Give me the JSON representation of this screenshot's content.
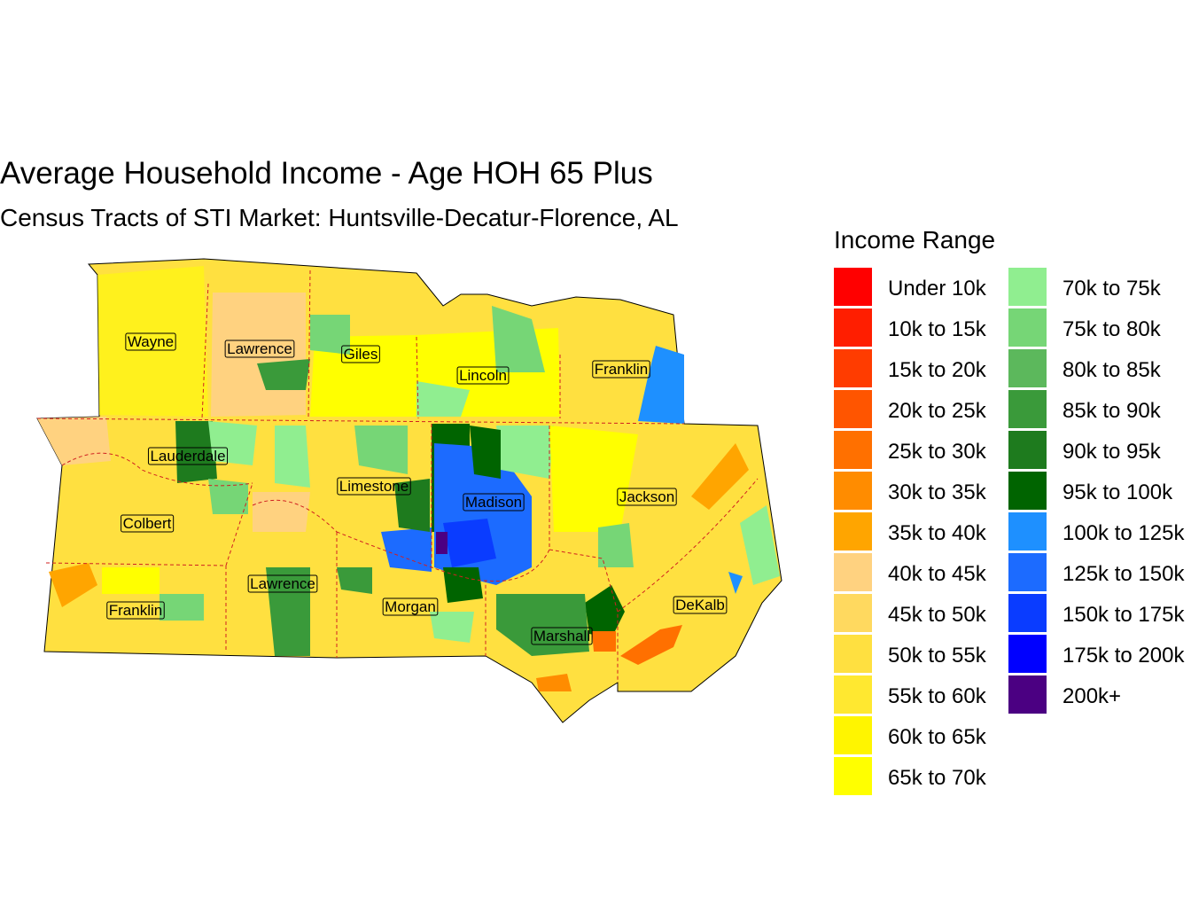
{
  "title": "Average Household Income - Age HOH 65 Plus",
  "subtitle": "Census Tracts of STI Market: Huntsville-Decatur-Florence, AL",
  "legend": {
    "title": "Income Range",
    "items": [
      {
        "label": "Under 10k",
        "color": "#FF0000"
      },
      {
        "label": "10k to 15k",
        "color": "#FF1E00"
      },
      {
        "label": "15k to 20k",
        "color": "#FF3C00"
      },
      {
        "label": "20k to 25k",
        "color": "#FF5500"
      },
      {
        "label": "25k to 30k",
        "color": "#FF7000"
      },
      {
        "label": "30k to 35k",
        "color": "#FF8C00"
      },
      {
        "label": "35k to 40k",
        "color": "#FFA500"
      },
      {
        "label": "40k to 45k",
        "color": "#FFD280"
      },
      {
        "label": "45k to 50k",
        "color": "#FFD95F"
      },
      {
        "label": "50k to 55k",
        "color": "#FFE040"
      },
      {
        "label": "55k to 60k",
        "color": "#FFE830"
      },
      {
        "label": "60k to 65k",
        "color": "#FFF500"
      },
      {
        "label": "65k to 70k",
        "color": "#FFFF00"
      },
      {
        "label": "70k to 75k",
        "color": "#90EE90"
      },
      {
        "label": "75k to 80k",
        "color": "#76D676"
      },
      {
        "label": "80k to 85k",
        "color": "#5CB85C"
      },
      {
        "label": "85k to 90k",
        "color": "#3A9A3A"
      },
      {
        "label": "90k to 95k",
        "color": "#1E7B1E"
      },
      {
        "label": "95k to 100k",
        "color": "#006400"
      },
      {
        "label": "100k to 125k",
        "color": "#1E90FF"
      },
      {
        "label": "125k to 150k",
        "color": "#1C6BFF"
      },
      {
        "label": "150k to 175k",
        "color": "#0A3CFF"
      },
      {
        "label": "175k to 200k",
        "color": "#0000FF"
      },
      {
        "label": "200k+",
        "color": "#4B0082"
      }
    ]
  },
  "counties": [
    {
      "label": "Wayne"
    },
    {
      "label": "Lawrence"
    },
    {
      "label": "Giles"
    },
    {
      "label": "Lincoln"
    },
    {
      "label": "Franklin"
    },
    {
      "label": "Lauderdale"
    },
    {
      "label": "Limestone"
    },
    {
      "label": "Madison"
    },
    {
      "label": "Jackson"
    },
    {
      "label": "Colbert"
    },
    {
      "label": "Lawrence"
    },
    {
      "label": "Morgan"
    },
    {
      "label": "Franklin"
    },
    {
      "label": "Marshall"
    },
    {
      "label": "DeKalb"
    }
  ]
}
